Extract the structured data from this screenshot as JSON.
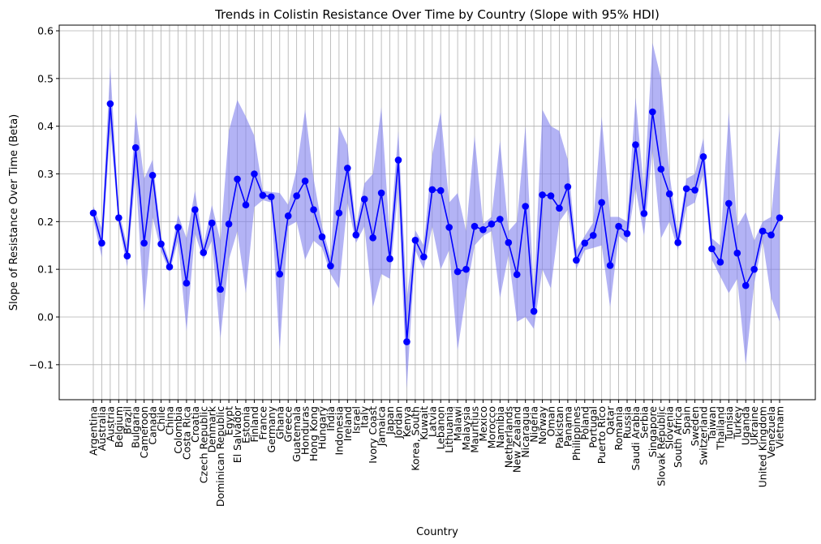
{
  "chart_data": {
    "type": "line",
    "title": "Trends in Colistin Resistance Over Time by Country (Slope with 95% HDI)",
    "xlabel": "Country",
    "ylabel": "Slope of Resistance Over Time (Beta)",
    "ylim": [
      -0.175,
      0.61
    ],
    "yticks": [
      -0.1,
      0.0,
      0.1,
      0.2,
      0.3,
      0.4,
      0.5,
      0.6
    ],
    "ytick_labels": [
      "−0.1",
      "0.0",
      "0.1",
      "0.2",
      "0.3",
      "0.4",
      "0.5",
      "0.6"
    ],
    "grid": true,
    "series_color": "#0000ff",
    "band_color": "#8080ee",
    "categories": [
      "Argentina",
      "Australia",
      "Austria",
      "Belgium",
      "Brazil",
      "Bulgaria",
      "Cameroon",
      "Canada",
      "Chile",
      "China",
      "Colombia",
      "Costa Rica",
      "Croatia",
      "Czech Republic",
      "Denmark",
      "Dominican Republic",
      "Egypt",
      "El Salvador",
      "Estonia",
      "Finland",
      "France",
      "Germany",
      "Ghana",
      "Greece",
      "Guatemala",
      "Honduras",
      "Hong Kong",
      "Hungary",
      "India",
      "Indonesia",
      "Ireland",
      "Israel",
      "Italy",
      "Ivory Coast",
      "Jamaica",
      "Japan",
      "Jordan",
      "Kenya",
      "Korea, South",
      "Kuwait",
      "Latvia",
      "Lebanon",
      "Lithuania",
      "Malawi",
      "Malaysia",
      "Mauritius",
      "Mexico",
      "Morocco",
      "Namibia",
      "Netherlands",
      "New Zealand",
      "Nicaragua",
      "Nigeria",
      "Norway",
      "Oman",
      "Pakistan",
      "Panama",
      "Philippines",
      "Poland",
      "Portugal",
      "Puerto Rico",
      "Qatar",
      "Romania",
      "Russia",
      "Saudi Arabia",
      "Serbia",
      "Singapore",
      "Slovak Republic",
      "Slovenia",
      "South Africa",
      "Spain",
      "Sweden",
      "Switzerland",
      "Taiwan",
      "Thailand",
      "Tunisia",
      "Turkey",
      "Uganda",
      "Ukraine",
      "United Kingdom",
      "Venezuela",
      "Vietnam"
    ],
    "series": [
      {
        "values": [
          0.218,
          0.155,
          0.447,
          0.208,
          0.128,
          0.355,
          0.155,
          0.297,
          0.153,
          0.105,
          0.188,
          0.071,
          0.225,
          0.135,
          0.197,
          0.058,
          0.195,
          0.289,
          0.235,
          0.3,
          0.255,
          0.252,
          0.09,
          0.212,
          0.254,
          0.285,
          0.225,
          0.168,
          0.107,
          0.218,
          0.312,
          0.172,
          0.247,
          0.166,
          0.26,
          0.122,
          0.329,
          -0.052,
          0.161,
          0.126,
          0.267,
          0.265,
          0.188,
          0.095,
          0.1,
          0.19,
          0.183,
          0.195,
          0.205,
          0.156,
          0.089,
          0.232,
          0.012,
          0.256,
          0.254,
          0.228,
          0.273,
          0.119,
          0.155,
          0.171,
          0.24,
          0.108,
          0.19,
          0.175,
          0.361,
          0.217,
          0.43,
          0.31,
          0.258,
          0.156,
          0.269,
          0.266,
          0.336,
          0.143,
          0.115,
          0.238,
          0.134,
          0.066,
          0.1,
          0.18,
          0.172,
          0.208
        ],
        "hdi_lower": [
          0.205,
          0.125,
          0.395,
          0.195,
          0.105,
          0.3,
          0.01,
          0.21,
          0.138,
          0.095,
          0.16,
          -0.03,
          0.175,
          0.12,
          0.16,
          -0.045,
          0.12,
          0.18,
          0.05,
          0.23,
          0.245,
          0.24,
          -0.07,
          0.19,
          0.2,
          0.12,
          0.16,
          0.145,
          0.09,
          0.06,
          0.24,
          0.155,
          0.19,
          0.02,
          0.09,
          0.08,
          0.27,
          -0.15,
          0.14,
          0.1,
          0.19,
          0.1,
          0.14,
          -0.07,
          0.05,
          0.15,
          0.17,
          0.18,
          0.04,
          0.13,
          -0.01,
          0.0,
          -0.025,
          0.1,
          0.06,
          0.2,
          0.225,
          0.1,
          0.14,
          0.145,
          0.15,
          0.02,
          0.17,
          0.155,
          0.27,
          0.17,
          0.35,
          0.165,
          0.2,
          0.14,
          0.23,
          0.24,
          0.3,
          0.12,
          0.085,
          0.05,
          0.08,
          -0.1,
          0.07,
          0.16,
          0.04,
          -0.01
        ],
        "hdi_upper": [
          0.233,
          0.185,
          0.525,
          0.223,
          0.15,
          0.43,
          0.29,
          0.33,
          0.168,
          0.115,
          0.215,
          0.165,
          0.265,
          0.15,
          0.235,
          0.16,
          0.39,
          0.455,
          0.42,
          0.38,
          0.265,
          0.262,
          0.26,
          0.235,
          0.31,
          0.435,
          0.29,
          0.19,
          0.125,
          0.4,
          0.36,
          0.188,
          0.28,
          0.3,
          0.44,
          0.165,
          0.39,
          0.04,
          0.182,
          0.15,
          0.34,
          0.43,
          0.24,
          0.26,
          0.18,
          0.38,
          0.195,
          0.21,
          0.37,
          0.18,
          0.2,
          0.4,
          0.05,
          0.435,
          0.4,
          0.39,
          0.33,
          0.14,
          0.17,
          0.198,
          0.42,
          0.21,
          0.21,
          0.2,
          0.46,
          0.265,
          0.575,
          0.5,
          0.3,
          0.175,
          0.29,
          0.3,
          0.375,
          0.165,
          0.15,
          0.43,
          0.19,
          0.22,
          0.16,
          0.2,
          0.21,
          0.4
        ]
      }
    ]
  }
}
